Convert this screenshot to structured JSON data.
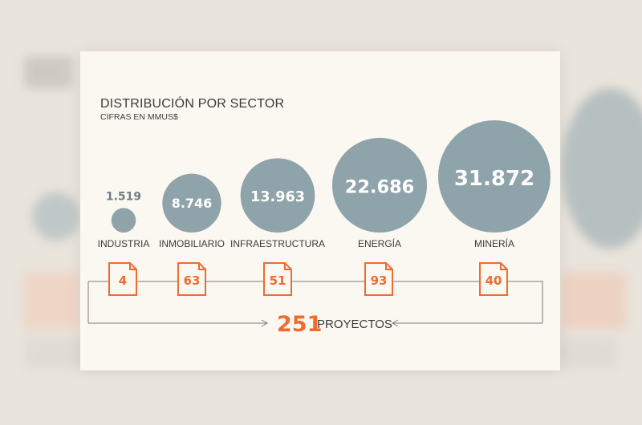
{
  "chart_data": {
    "type": "bubble",
    "title": "DISTRIBUCIÓN  POR SECTOR",
    "subtitle": "CIFRAS EN MMUS$",
    "categories": [
      "INDUSTRIA",
      "INMOBILIARIO",
      "INFRAESTRUCTURA",
      "ENERGÍA",
      "MINERÍA"
    ],
    "values": [
      1.519,
      8.746,
      13.963,
      22.686,
      31.872
    ],
    "value_labels": [
      "1.519",
      "8.746",
      "13.963",
      "22.686",
      "31.872"
    ],
    "projects": [
      "4",
      "63",
      "51",
      "93",
      "40"
    ],
    "total_projects": "251",
    "total_label": "PROYECTOS",
    "colors": {
      "bubble": "#8fa3aa",
      "accent": "#f26a2e",
      "text": "#3a3a3a"
    }
  }
}
